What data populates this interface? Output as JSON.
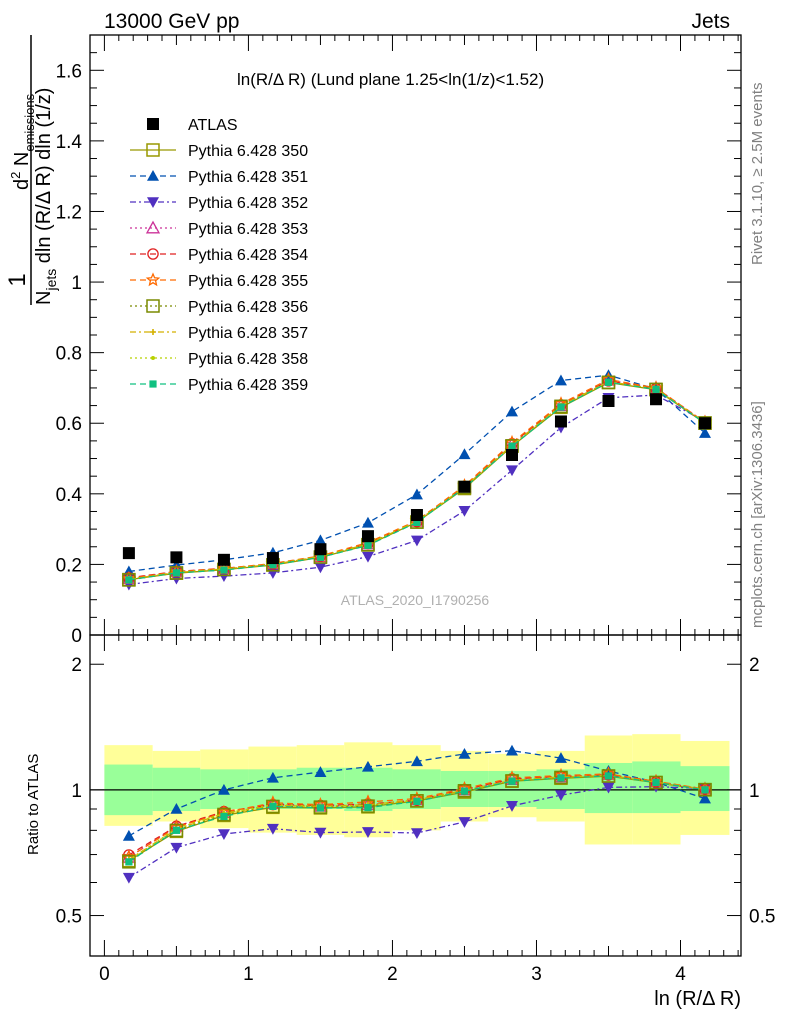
{
  "header": {
    "left": "13000 GeV pp",
    "right": "Jets"
  },
  "side": {
    "rivet": "Rivet 3.1.10, ≥ 2.5M events",
    "mcplots": "mcplots.cern.ch [arXiv:1306.3436]"
  },
  "chart_data": {
    "type": "scatter",
    "title": "ln(R/Δ R) (Lund plane 1.25<ln(1/z)<1.52)",
    "watermark": "ATLAS_2020_I1790256",
    "ylabel": {
      "frac_num": "1",
      "frac_den_N": "N",
      "frac_den_sub": "jets",
      "frac_den_rest": " dln (R/Δ R) dln (1/z)",
      "num_d": "d",
      "num_sup": "2",
      "num_N": " N",
      "num_sub": "emissions"
    },
    "xlabel": "ln (R/Δ R)",
    "ratio_ylabel": "Ratio to ATLAS",
    "xlim": [
      -0.1,
      4.42
    ],
    "ylim": [
      0,
      1.7
    ],
    "ratio_ylim": [
      0.4,
      2.35
    ],
    "log_ratio": true,
    "x_ticks": [
      "0",
      "1",
      "2",
      "3",
      "4"
    ],
    "y_ticks": [
      "0",
      "0.2",
      "0.4",
      "0.6",
      "0.8",
      "1",
      "1.2",
      "1.4",
      "1.6"
    ],
    "ratio_ticks": [
      "0.5",
      "1",
      "2"
    ],
    "x": [
      0.17,
      0.5,
      0.83,
      1.17,
      1.5,
      1.83,
      2.17,
      2.5,
      2.83,
      3.17,
      3.5,
      3.83,
      4.17
    ],
    "atlas": [
      0.232,
      0.22,
      0.213,
      0.218,
      0.243,
      0.28,
      0.34,
      0.42,
      0.51,
      0.605,
      0.663,
      0.668,
      0.6
    ],
    "band_green": [
      [
        0.87,
        1.15
      ],
      [
        0.89,
        1.13
      ],
      [
        0.9,
        1.12
      ],
      [
        0.9,
        1.12
      ],
      [
        0.9,
        1.13
      ],
      [
        0.89,
        1.13
      ],
      [
        0.9,
        1.12
      ],
      [
        0.91,
        1.11
      ],
      [
        0.91,
        1.11
      ],
      [
        0.9,
        1.12
      ],
      [
        0.88,
        1.16
      ],
      [
        0.88,
        1.17
      ],
      [
        0.89,
        1.14
      ]
    ],
    "band_yellow": [
      [
        0.82,
        1.28
      ],
      [
        0.84,
        1.24
      ],
      [
        0.81,
        1.25
      ],
      [
        0.79,
        1.27
      ],
      [
        0.78,
        1.28
      ],
      [
        0.77,
        1.3
      ],
      [
        0.8,
        1.28
      ],
      [
        0.84,
        1.24
      ],
      [
        0.86,
        1.22
      ],
      [
        0.84,
        1.24
      ],
      [
        0.74,
        1.35
      ],
      [
        0.74,
        1.36
      ],
      [
        0.78,
        1.31
      ]
    ],
    "series": [
      {
        "name": "ATLAS",
        "color": "#000000",
        "marker": "square-filled",
        "line": "none"
      },
      {
        "name": "Pythia 6.428 350",
        "color": "#999900",
        "marker": "square-open",
        "line": "solid",
        "values": [
          0.157,
          0.175,
          0.185,
          0.198,
          0.22,
          0.255,
          0.32,
          0.415,
          0.535,
          0.645,
          0.715,
          0.695,
          0.6
        ]
      },
      {
        "name": "Pythia 6.428 351",
        "color": "#0050b0",
        "marker": "triangle-up-filled",
        "line": "dashed",
        "values": [
          0.18,
          0.198,
          0.213,
          0.233,
          0.268,
          0.318,
          0.398,
          0.512,
          0.633,
          0.721,
          0.736,
          0.697,
          0.572
        ]
      },
      {
        "name": "Pythia 6.428 352",
        "color": "#5030c0",
        "marker": "triangle-down-filled",
        "line": "dashdot",
        "values": [
          0.143,
          0.16,
          0.167,
          0.176,
          0.192,
          0.222,
          0.268,
          0.352,
          0.467,
          0.588,
          0.672,
          0.68,
          0.605
        ]
      },
      {
        "name": "Pythia 6.428 353",
        "color": "#cc3399",
        "marker": "triangle-up-open",
        "line": "dotted",
        "values": [
          0.16,
          0.18,
          0.188,
          0.202,
          0.222,
          0.258,
          0.322,
          0.42,
          0.54,
          0.65,
          0.722,
          0.7,
          0.603
        ]
      },
      {
        "name": "Pythia 6.428 354",
        "color": "#e02020",
        "marker": "circle-open",
        "line": "dashed",
        "values": [
          0.162,
          0.18,
          0.189,
          0.201,
          0.223,
          0.259,
          0.321,
          0.421,
          0.542,
          0.652,
          0.72,
          0.698,
          0.602
        ]
      },
      {
        "name": "Pythia 6.428 355",
        "color": "#ff6a00",
        "marker": "star-open",
        "line": "dashed",
        "values": [
          0.16,
          0.179,
          0.188,
          0.203,
          0.224,
          0.262,
          0.324,
          0.423,
          0.545,
          0.655,
          0.724,
          0.7,
          0.603
        ]
      },
      {
        "name": "Pythia 6.428 356",
        "color": "#7a8a00",
        "marker": "square-open",
        "line": "dotted",
        "values": [
          0.156,
          0.176,
          0.186,
          0.199,
          0.221,
          0.256,
          0.32,
          0.418,
          0.536,
          0.648,
          0.716,
          0.696,
          0.601
        ]
      },
      {
        "name": "Pythia 6.428 357",
        "color": "#d4b000",
        "marker": "cross-small",
        "line": "dashdot",
        "values": [
          0.158,
          0.177,
          0.187,
          0.2,
          0.222,
          0.258,
          0.322,
          0.419,
          0.538,
          0.65,
          0.718,
          0.697,
          0.602
        ]
      },
      {
        "name": "Pythia 6.428 358",
        "color": "#b8d000",
        "marker": "dot",
        "line": "dotted",
        "values": [
          0.157,
          0.178,
          0.187,
          0.201,
          0.222,
          0.257,
          0.321,
          0.418,
          0.537,
          0.649,
          0.717,
          0.697,
          0.601
        ]
      },
      {
        "name": "Pythia 6.428 359",
        "color": "#10c080",
        "marker": "square-filled-small",
        "line": "dashed",
        "values": [
          0.156,
          0.176,
          0.184,
          0.199,
          0.22,
          0.254,
          0.319,
          0.417,
          0.535,
          0.646,
          0.716,
          0.696,
          0.6
        ]
      }
    ]
  }
}
